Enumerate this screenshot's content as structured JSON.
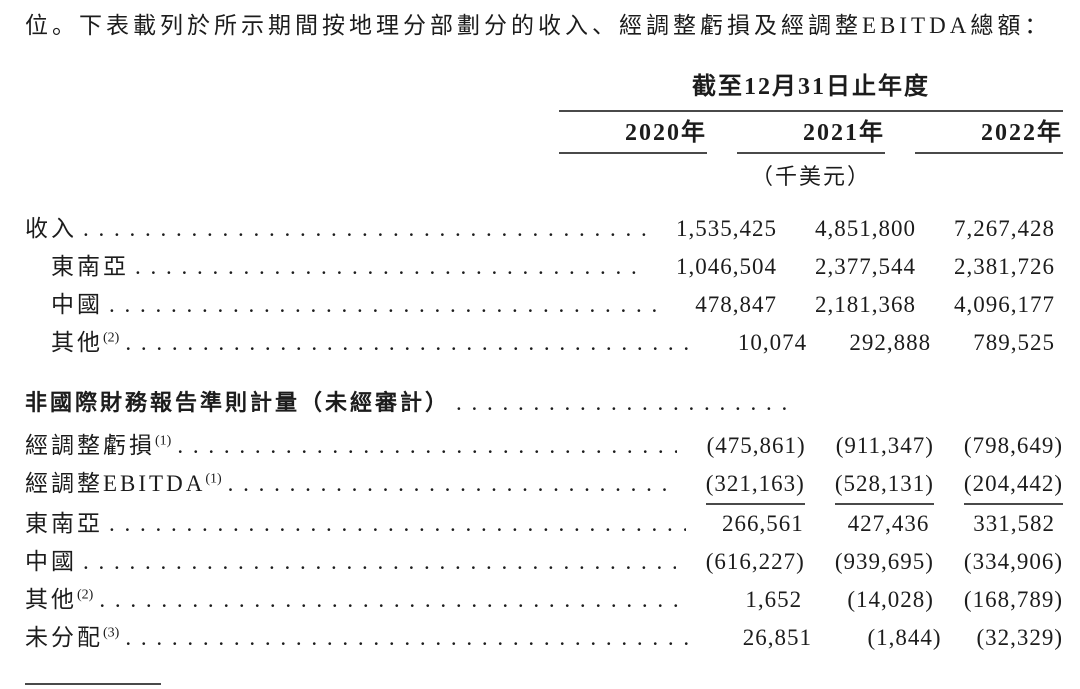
{
  "page": {
    "intro_text": "位。下表載列於所示期間按地理分部劃分的收入、經調整虧損及經調整EBITDA總額："
  },
  "colors": {
    "text": "#1c1c1c",
    "rule": "#4a4a4a",
    "background": "#ffffff"
  },
  "table": {
    "period_header": "截至12月31日止年度",
    "year_headers": [
      "2020年",
      "2021年",
      "2022年"
    ],
    "unit_label": "（千美元）",
    "rows": [
      {
        "label": "收入",
        "sup": null,
        "values": [
          "1,535,425",
          "4,851,800",
          "7,267,428"
        ]
      },
      {
        "label": "東南亞",
        "sup": null,
        "values": [
          "1,046,504",
          "2,377,544",
          "2,381,726"
        ]
      },
      {
        "label": "中國",
        "sup": null,
        "values": [
          "478,847",
          "2,181,368",
          "4,096,177"
        ]
      },
      {
        "label": "其他",
        "sup": "(2)",
        "values": [
          "10,074",
          "292,888",
          "789,525"
        ]
      },
      {
        "label": "非國際財務報告準則計量（未經審計）",
        "sup": null,
        "values": [
          null,
          null,
          null
        ]
      },
      {
        "label": "經調整虧損",
        "sup": "(1)",
        "values": [
          "(475,861)",
          "(911,347)",
          "(798,649)"
        ]
      },
      {
        "label": "經調整EBITDA",
        "sup": "(1)",
        "values": [
          "(321,163)",
          "(528,131)",
          "(204,442)"
        ]
      },
      {
        "label": "東南亞",
        "sup": null,
        "values": [
          "266,561",
          "427,436",
          "331,582"
        ]
      },
      {
        "label": "中國",
        "sup": null,
        "values": [
          "(616,227)",
          "(939,695)",
          "(334,906)"
        ]
      },
      {
        "label": "其他",
        "sup": "(2)",
        "values": [
          "1,652",
          "(14,028)",
          "(168,789)"
        ]
      },
      {
        "label": "未分配",
        "sup": "(3)",
        "values": [
          "26,851",
          "(1,844)",
          "(32,329)"
        ]
      }
    ]
  }
}
